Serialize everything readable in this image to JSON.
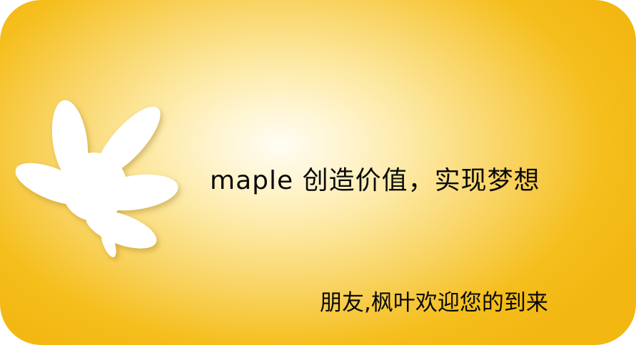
{
  "banner": {
    "slogan": "maple 创造价值，实现梦想",
    "welcome": "朋友,枫叶欢迎您的到来",
    "logo_icon": "maple-leaf-icon",
    "colors": {
      "center": "#fffdf4",
      "edge": "#f3b712",
      "leaf": "#ffffff",
      "text": "#0a0a0a"
    }
  }
}
